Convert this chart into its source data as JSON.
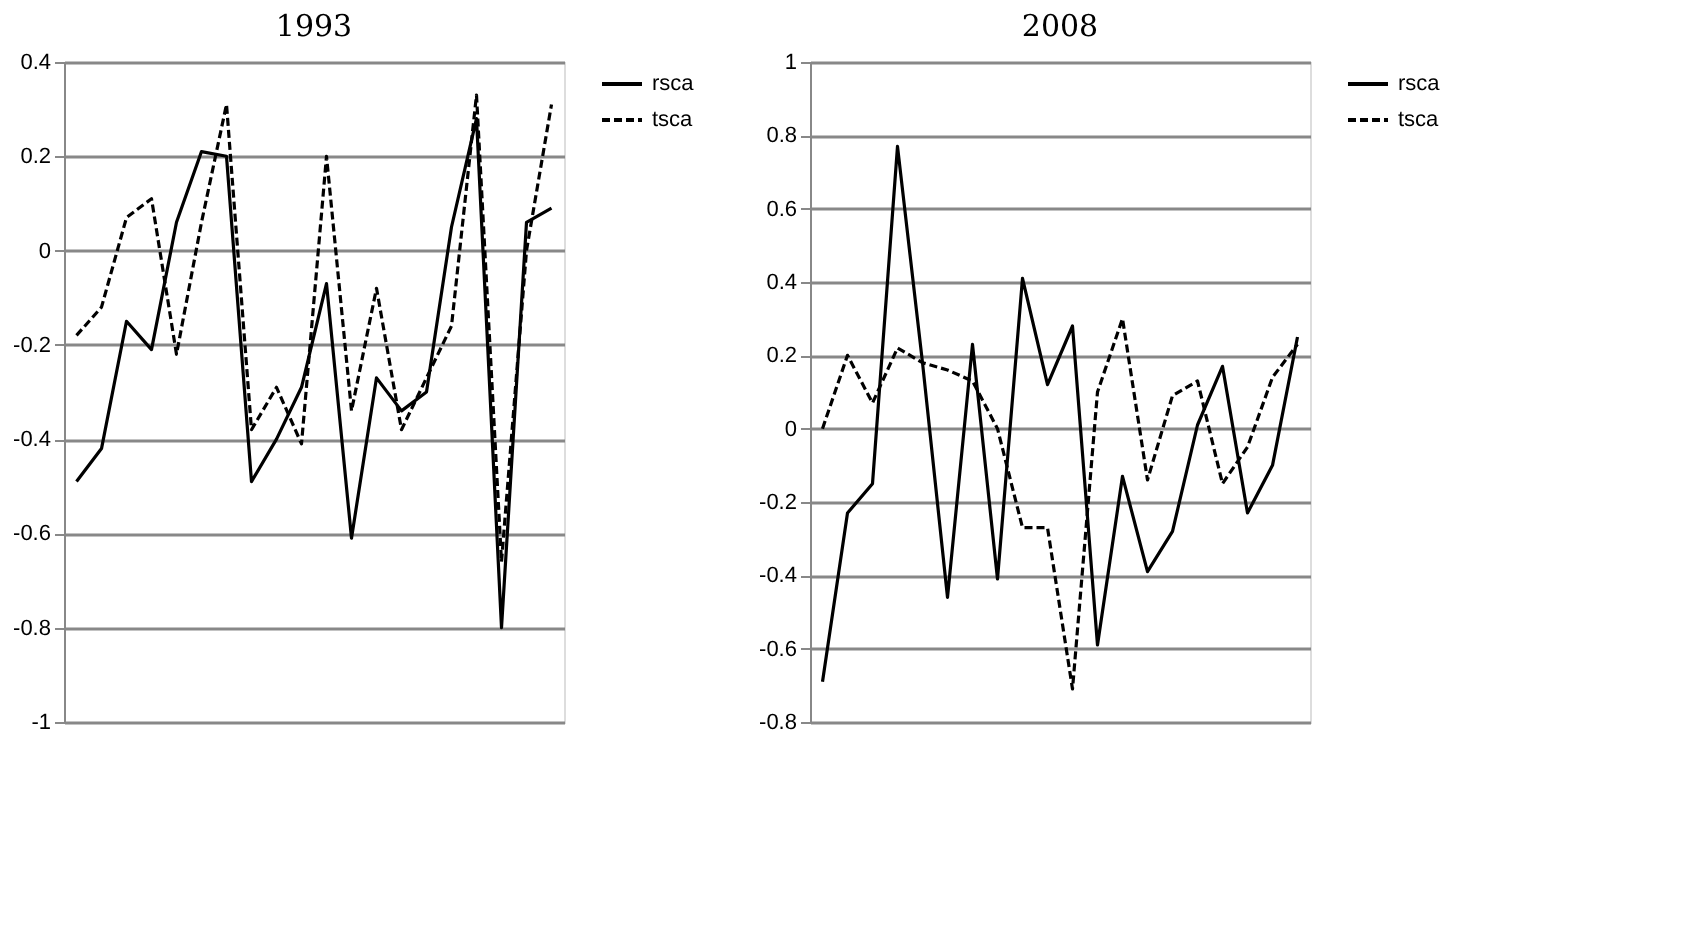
{
  "chart_data": [
    {
      "type": "line",
      "title": "1993",
      "categories": [
        null,
        null,
        null,
        null,
        null,
        null,
        null,
        null,
        null,
        null,
        null,
        null,
        null,
        null,
        null,
        null,
        null,
        null,
        null,
        null
      ],
      "ylim": [
        -1,
        0.4
      ],
      "yticks": [
        -1,
        -0.8,
        -0.6,
        -0.4,
        -0.2,
        0,
        0.2,
        0.4
      ],
      "grid": "y",
      "legend": "right",
      "tick_labels": "y",
      "series": [
        {
          "name": "rsca",
          "color": "#000000",
          "line_style": "solid",
          "values": [
            -0.49,
            -0.42,
            -0.15,
            -0.21,
            0.06,
            0.21,
            0.2,
            -0.49,
            -0.4,
            -0.29,
            -0.07,
            -0.61,
            -0.27,
            -0.34,
            -0.3,
            0.05,
            0.28,
            -0.8,
            0.06,
            0.09
          ]
        },
        {
          "name": "tsca",
          "color": "#000000",
          "line_style": "dashed",
          "values": [
            -0.18,
            -0.12,
            0.07,
            0.11,
            -0.22,
            0.06,
            0.31,
            -0.38,
            -0.29,
            -0.41,
            0.2,
            -0.34,
            -0.08,
            -0.38,
            -0.27,
            -0.16,
            0.33,
            -0.66,
            0.0,
            0.31
          ]
        }
      ]
    },
    {
      "type": "line",
      "title": "2008",
      "categories": [
        null,
        null,
        null,
        null,
        null,
        null,
        null,
        null,
        null,
        null,
        null,
        null,
        null,
        null,
        null,
        null,
        null,
        null,
        null,
        null
      ],
      "ylim": [
        -0.8,
        1
      ],
      "yticks": [
        -0.8,
        -0.6,
        -0.4,
        -0.2,
        0,
        0.2,
        0.4,
        0.6,
        0.8,
        1
      ],
      "grid": "y",
      "legend": "right",
      "tick_labels": "y",
      "series": [
        {
          "name": "rsca",
          "color": "#000000",
          "line_style": "solid",
          "values": [
            -0.69,
            -0.23,
            -0.15,
            0.77,
            0.18,
            -0.46,
            0.23,
            -0.41,
            0.41,
            0.12,
            0.28,
            -0.59,
            -0.13,
            -0.39,
            -0.28,
            0.01,
            0.17,
            -0.23,
            -0.1,
            0.25
          ]
        },
        {
          "name": "tsca",
          "color": "#000000",
          "line_style": "dashed",
          "values": [
            0.0,
            0.2,
            0.07,
            0.22,
            0.18,
            0.16,
            0.13,
            0.0,
            -0.27,
            -0.27,
            -0.71,
            0.1,
            0.3,
            -0.14,
            0.09,
            0.13,
            -0.15,
            -0.05,
            0.14,
            0.23
          ]
        }
      ]
    }
  ]
}
